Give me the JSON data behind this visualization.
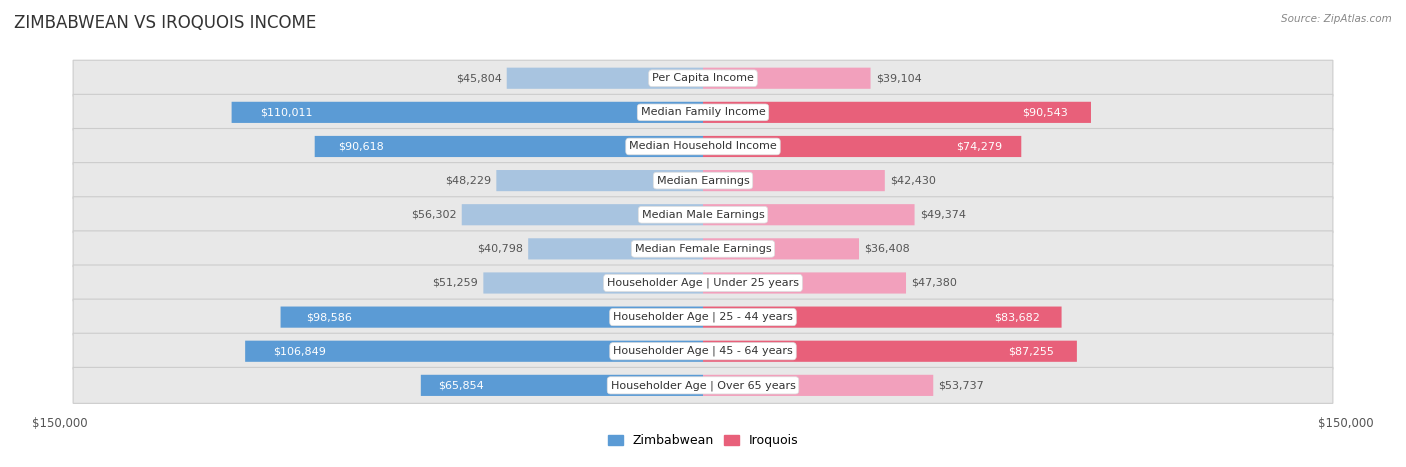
{
  "title": "ZIMBABWEAN VS IROQUOIS INCOME",
  "source": "Source: ZipAtlas.com",
  "categories": [
    "Per Capita Income",
    "Median Family Income",
    "Median Household Income",
    "Median Earnings",
    "Median Male Earnings",
    "Median Female Earnings",
    "Householder Age | Under 25 years",
    "Householder Age | 25 - 44 years",
    "Householder Age | 45 - 64 years",
    "Householder Age | Over 65 years"
  ],
  "zimbabwean": [
    45804,
    110011,
    90618,
    48229,
    56302,
    40798,
    51259,
    98586,
    106849,
    65854
  ],
  "iroquois": [
    39104,
    90543,
    74279,
    42430,
    49374,
    36408,
    47380,
    83682,
    87255,
    53737
  ],
  "max_value": 150000,
  "zim_color_light": "#a8c4e0",
  "zim_color_dark": "#5b9bd5",
  "iro_color_light": "#f2a0bc",
  "iro_color_dark": "#e8607a",
  "row_bg_color": "#e8e8e8",
  "row_border_color": "#cccccc",
  "bar_height": 0.62,
  "threshold_dark_label": 60000,
  "background_color": "#ffffff",
  "title_fontsize": 12,
  "label_fontsize": 8,
  "category_fontsize": 8,
  "axis_fontsize": 8.5,
  "legend_fontsize": 9
}
